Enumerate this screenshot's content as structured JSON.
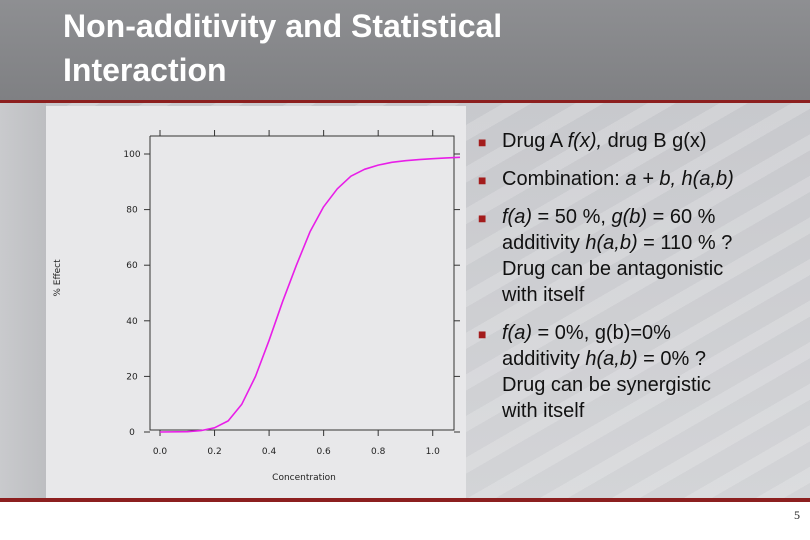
{
  "slide": {
    "title_lines": [
      "Non-additivity and Statistical",
      "Interaction"
    ],
    "page_number": "5",
    "accent_color": "#8c1f1f",
    "bullet_color": "#a31c1c"
  },
  "bullets": [
    {
      "lines": [
        [
          {
            "t": "Drug A ",
            "i": false
          },
          {
            "t": "f(x),",
            "i": true
          },
          {
            "t": " drug B g(x)",
            "i": false
          }
        ]
      ]
    },
    {
      "lines": [
        [
          {
            "t": "Combination: ",
            "i": false
          },
          {
            "t": "a + b, h(a,b)",
            "i": true
          }
        ]
      ]
    },
    {
      "lines": [
        [
          {
            "t": "f(a)",
            "i": true
          },
          {
            "t": " = 50 %, ",
            "i": false
          },
          {
            "t": "g(b)",
            "i": true
          },
          {
            "t": " = 60 %",
            "i": false
          }
        ],
        [
          {
            "t": "additivity ",
            "i": false
          },
          {
            "t": "h(a,b)",
            "i": true
          },
          {
            "t": " = 110 % ?",
            "i": false
          }
        ],
        [
          {
            "t": "Drug can be antagonistic",
            "i": false
          }
        ],
        [
          {
            "t": "with itself",
            "i": false
          }
        ]
      ]
    },
    {
      "lines": [
        [
          {
            "t": "f(a)",
            "i": true
          },
          {
            "t": " = 0%, g(b)=0%",
            "i": false
          }
        ],
        [
          {
            "t": "additivity ",
            "i": false
          },
          {
            "t": "h(a,b)",
            "i": true
          },
          {
            "t": " = 0% ?",
            "i": false
          }
        ],
        [
          {
            "t": "Drug can be synergistic",
            "i": false
          }
        ],
        [
          {
            "t": "with itself",
            "i": false
          }
        ]
      ]
    }
  ],
  "chart_data": {
    "type": "line",
    "title": "",
    "xlabel": "Concentration",
    "ylabel": "% Effect",
    "xlim": [
      0.0,
      1.1
    ],
    "ylim": [
      0,
      100
    ],
    "x_ticks": [
      "0.0",
      "0.2",
      "0.4",
      "0.6",
      "0.8",
      "1.0"
    ],
    "y_ticks": [
      "0",
      "20",
      "40",
      "60",
      "80",
      "100"
    ],
    "grid": false,
    "series": [
      {
        "color": "#e81ee8",
        "x": [
          0.0,
          0.1,
          0.15,
          0.2,
          0.25,
          0.3,
          0.35,
          0.4,
          0.45,
          0.5,
          0.55,
          0.6,
          0.65,
          0.7,
          0.75,
          0.8,
          0.85,
          0.9,
          0.95,
          1.0,
          1.05,
          1.1
        ],
        "y": [
          0,
          0.1,
          0.5,
          1.5,
          4,
          10,
          20,
          33,
          47,
          60,
          72,
          81,
          87.5,
          92,
          94.5,
          96,
          97,
          97.6,
          98,
          98.3,
          98.6,
          98.8
        ]
      }
    ]
  }
}
